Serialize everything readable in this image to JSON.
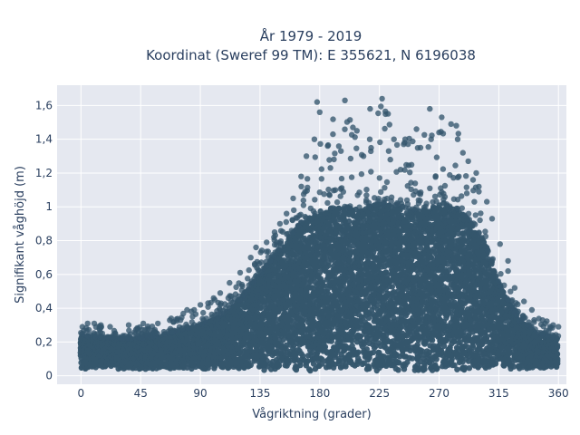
{
  "chart_data": {
    "type": "scatter",
    "title": "År 1979 - 2019",
    "subtitle": "Koordinat (Sweref 99 TM): E 355621, N 6196038",
    "xlabel": "Vågriktning (grader)",
    "ylabel": "Signifikant våghöjd (m)",
    "xlim": [
      -18,
      366
    ],
    "ylim": [
      -0.05,
      1.72
    ],
    "x_ticks": [
      0,
      45,
      90,
      135,
      180,
      225,
      270,
      315,
      360
    ],
    "x_tick_labels": [
      "0",
      "45",
      "90",
      "135",
      "180",
      "225",
      "270",
      "315",
      "360"
    ],
    "y_ticks": [
      0,
      0.2,
      0.4,
      0.6,
      0.8,
      1.0,
      1.2,
      1.4,
      1.6
    ],
    "y_tick_labels": [
      "0",
      "0,2",
      "0,4",
      "0,6",
      "0,8",
      "1",
      "1,2",
      "1,4",
      "1,6"
    ],
    "grid": true,
    "marker_color": "#35566d",
    "plot_bg": "#e5e8f0",
    "envelope": {
      "x": [
        0,
        10,
        30,
        45,
        60,
        75,
        90,
        105,
        120,
        135,
        150,
        165,
        180,
        195,
        210,
        225,
        240,
        255,
        270,
        285,
        295,
        305,
        315,
        330,
        345,
        360
      ],
      "y_min": [
        0.04,
        0.04,
        0.04,
        0.04,
        0.04,
        0.04,
        0.04,
        0.04,
        0.04,
        0.03,
        0.03,
        0.03,
        0.03,
        0.03,
        0.03,
        0.03,
        0.03,
        0.03,
        0.03,
        0.03,
        0.03,
        0.04,
        0.04,
        0.04,
        0.04,
        0.04
      ],
      "y_max": [
        0.31,
        0.3,
        0.28,
        0.29,
        0.31,
        0.36,
        0.42,
        0.47,
        0.56,
        0.74,
        0.86,
        1.1,
        1.4,
        1.62,
        1.5,
        1.63,
        1.45,
        1.38,
        1.58,
        1.46,
        1.2,
        0.98,
        0.65,
        0.42,
        0.34,
        0.3
      ],
      "dense_max": [
        0.24,
        0.23,
        0.22,
        0.22,
        0.24,
        0.27,
        0.3,
        0.35,
        0.45,
        0.6,
        0.75,
        0.9,
        0.98,
        1.0,
        0.98,
        1.02,
        1.0,
        0.98,
        1.02,
        0.98,
        0.9,
        0.78,
        0.55,
        0.33,
        0.25,
        0.22
      ]
    },
    "outliers": [
      [
        178,
        1.62
      ],
      [
        199,
        1.63
      ],
      [
        218,
        1.58
      ],
      [
        227,
        1.64
      ],
      [
        263,
        1.58
      ],
      [
        180,
        1.56
      ],
      [
        205,
        1.47
      ],
      [
        176,
        1.4
      ],
      [
        190,
        1.43
      ],
      [
        208,
        1.45
      ],
      [
        236,
        1.4
      ],
      [
        244,
        1.38
      ],
      [
        256,
        1.35
      ],
      [
        272,
        1.53
      ],
      [
        279,
        1.49
      ],
      [
        283,
        1.48
      ],
      [
        288,
        1.32
      ],
      [
        292,
        1.27
      ],
      [
        270,
        1.44
      ],
      [
        253,
        1.46
      ],
      [
        264,
        1.4
      ],
      [
        232,
        1.33
      ],
      [
        213,
        1.3
      ],
      [
        196,
        1.33
      ],
      [
        186,
        1.36
      ],
      [
        170,
        1.3
      ],
      [
        166,
        1.18
      ],
      [
        284,
        1.4
      ],
      [
        298,
        1.2
      ],
      [
        300,
        1.09
      ],
      [
        306,
        1.03
      ],
      [
        310,
        0.93
      ],
      [
        316,
        0.78
      ],
      [
        322,
        0.62
      ],
      [
        327,
        0.52
      ],
      [
        334,
        0.44
      ],
      [
        340,
        0.39
      ],
      [
        348,
        0.33
      ],
      [
        356,
        0.3
      ],
      [
        150,
        0.9
      ],
      [
        146,
        0.85
      ],
      [
        140,
        0.79
      ],
      [
        132,
        0.76
      ],
      [
        128,
        0.7
      ],
      [
        120,
        0.61
      ],
      [
        112,
        0.55
      ],
      [
        105,
        0.49
      ],
      [
        100,
        0.46
      ],
      [
        90,
        0.42
      ],
      [
        80,
        0.39
      ],
      [
        68,
        0.34
      ],
      [
        58,
        0.31
      ],
      [
        47,
        0.31
      ],
      [
        36,
        0.3
      ],
      [
        22,
        0.29
      ],
      [
        5,
        0.31
      ],
      [
        10,
        0.31
      ],
      [
        15,
        0.3
      ],
      [
        360,
        0.29
      ],
      [
        350,
        0.31
      ],
      [
        322,
        0.68
      ],
      [
        300,
        1.12
      ],
      [
        160,
        1.05
      ],
      [
        155,
        0.96
      ]
    ]
  }
}
